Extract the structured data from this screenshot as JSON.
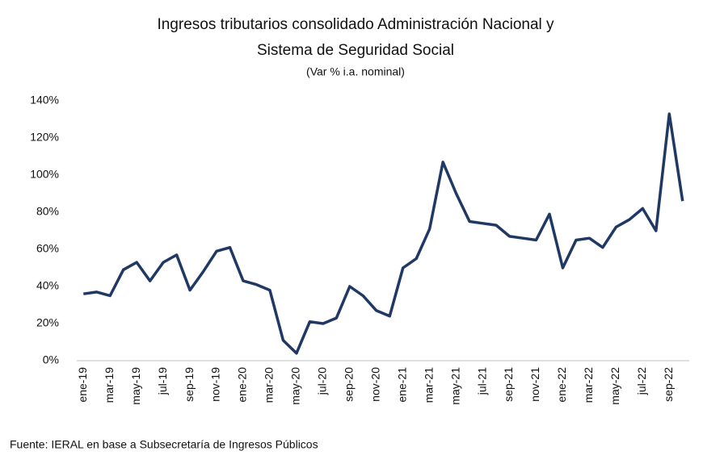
{
  "chart_data": {
    "type": "line",
    "title": [
      "Ingresos tributarios consolidado Administración Nacional y",
      "Sistema de Seguridad Social"
    ],
    "subtitle": "(Var % i.a. nominal)",
    "source": "Fuente: IERAL en base a Subsecretaría de Ingresos Públicos",
    "categories": [
      "ene-19",
      null,
      "mar-19",
      null,
      "may-19",
      null,
      "jul-19",
      null,
      "sep-19",
      null,
      "nov-19",
      null,
      "ene-20",
      null,
      "mar-20",
      null,
      "may-20",
      null,
      "jul-20",
      null,
      "sep-20",
      null,
      "nov-20",
      null,
      "ene-21",
      null,
      "mar-21",
      null,
      "may-21",
      null,
      "jul-21",
      null,
      "sep-21",
      null,
      "nov-21",
      null,
      "ene-22",
      null,
      "mar-22",
      null,
      "may-22",
      null,
      "jul-22",
      null,
      "sep-22",
      null
    ],
    "values": [
      36,
      37,
      35,
      49,
      53,
      43,
      53,
      57,
      38,
      48,
      59,
      61,
      43,
      41,
      38,
      11,
      4,
      21,
      20,
      23,
      40,
      35,
      27,
      24,
      50,
      55,
      71,
      107,
      90,
      75,
      74,
      73,
      67,
      66,
      65,
      79,
      50,
      65,
      66,
      61,
      72,
      76,
      82,
      70,
      133,
      86
    ],
    "color": "#203864",
    "ylim": [
      0,
      140
    ],
    "yticks": [
      {
        "value": 0,
        "label": "0%"
      },
      {
        "value": 20,
        "label": "20%"
      },
      {
        "value": 40,
        "label": "40%"
      },
      {
        "value": 60,
        "label": "60%"
      },
      {
        "value": 80,
        "label": "80%"
      },
      {
        "value": 100,
        "label": "100%"
      },
      {
        "value": 120,
        "label": "120%"
      },
      {
        "value": 140,
        "label": "140%"
      }
    ],
    "grid": false
  }
}
